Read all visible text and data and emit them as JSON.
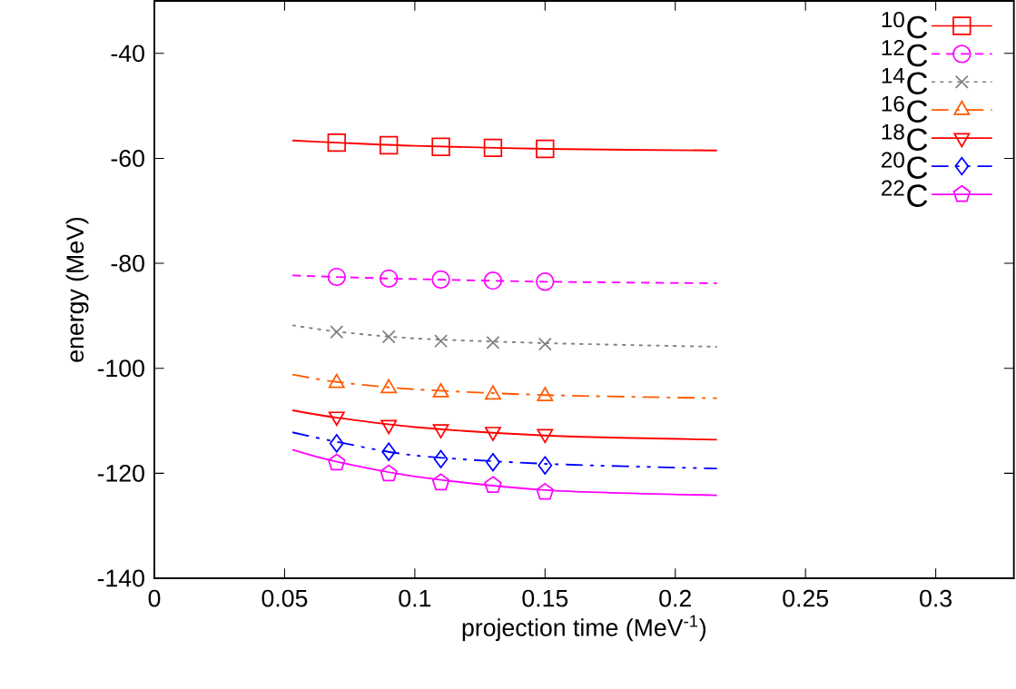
{
  "chart_data": {
    "type": "scatter",
    "xlabel": "projection time (MeV$^{-1}$)",
    "ylabel": "energy (MeV)",
    "xlim": [
      0,
      0.33
    ],
    "ylim": [
      -140,
      -30
    ],
    "xticks": [
      0,
      0.05,
      0.1,
      0.15,
      0.2,
      0.25,
      0.3
    ],
    "yticks": [
      -140,
      -120,
      -100,
      -80,
      -60,
      -40
    ],
    "legend": "top right",
    "grid": false,
    "series": [
      {
        "name": "$^{10}$C",
        "color": "#ff0000",
        "marker": "square",
        "line_style": "solid",
        "x": [
          0.07,
          0.09,
          0.11,
          0.13,
          0.15
        ],
        "values": [
          -57.0,
          -57.5,
          -57.8,
          -58.0,
          -58.2
        ]
      },
      {
        "name": "$^{12}$C",
        "color": "#ff00ff",
        "marker": "circle",
        "line_style": "dashed",
        "x": [
          0.07,
          0.09,
          0.11,
          0.13,
          0.15
        ],
        "values": [
          -82.6,
          -82.9,
          -83.1,
          -83.3,
          -83.5
        ]
      },
      {
        "name": "$^{14}$C",
        "color": "#808080",
        "marker": "cross",
        "line_style": "dotted",
        "x": [
          0.07,
          0.09,
          0.11,
          0.13,
          0.15
        ],
        "values": [
          -93.1,
          -94.0,
          -94.8,
          -95.1,
          -95.4
        ]
      },
      {
        "name": "$^{16}$C",
        "color": "#ff5a00",
        "marker": "triangle",
        "line_style": "dashdot",
        "x": [
          0.07,
          0.09,
          0.11,
          0.13,
          0.15
        ],
        "values": [
          -102.8,
          -103.8,
          -104.6,
          -105.0,
          -105.3
        ]
      },
      {
        "name": "$^{18}$C",
        "color": "#ff0000",
        "marker": "triangle-down",
        "line_style": "solid",
        "x": [
          0.07,
          0.09,
          0.11,
          0.13,
          0.15
        ],
        "values": [
          -109.2,
          -110.8,
          -111.6,
          -112.1,
          -112.5
        ]
      },
      {
        "name": "$^{20}$C",
        "color": "#0000ff",
        "marker": "diamond",
        "line_style": "dashdotdot",
        "x": [
          0.07,
          0.09,
          0.11,
          0.13,
          0.15
        ],
        "values": [
          -114.3,
          -115.9,
          -117.3,
          -117.9,
          -118.5
        ]
      },
      {
        "name": "$^{22}$C",
        "color": "#ff00ff",
        "line_style": "solid",
        "x": [
          0.07,
          0.09,
          0.11,
          0.13,
          0.15
        ],
        "values": [
          -118.0,
          -120.1,
          -121.8,
          -122.3,
          -123.6
        ]
      },
      {
        "type": "line",
        "color": "#ff0000",
        "line_style": "solid",
        "x": [
          0.053,
          0.07,
          0.1,
          0.15,
          0.216
        ],
        "values": [
          -56.6,
          -57.0,
          -57.6,
          -58.2,
          -58.5
        ]
      },
      {
        "type": "line",
        "color": "#ff00ff",
        "line_style": "dashed",
        "x": [
          0.053,
          0.07,
          0.1,
          0.15,
          0.216
        ],
        "values": [
          -82.3,
          -82.6,
          -83.0,
          -83.5,
          -83.8
        ]
      },
      {
        "type": "line",
        "color": "#808080",
        "line_style": "dotted",
        "x": [
          0.053,
          0.07,
          0.1,
          0.15,
          0.216
        ],
        "values": [
          -91.8,
          -93.0,
          -94.3,
          -95.2,
          -95.9
        ]
      },
      {
        "type": "line",
        "color": "#ff5a00",
        "line_style": "dashdot",
        "x": [
          0.053,
          0.07,
          0.1,
          0.15,
          0.216
        ],
        "values": [
          -101.2,
          -102.6,
          -104.0,
          -105.1,
          -105.7
        ]
      },
      {
        "type": "line",
        "color": "#ff0000",
        "line_style": "solid",
        "x": [
          0.053,
          0.07,
          0.1,
          0.15,
          0.216
        ],
        "values": [
          -108.0,
          -109.4,
          -111.2,
          -112.8,
          -113.6
        ]
      },
      {
        "type": "line",
        "color": "#0000ff",
        "line_style": "dashdotdot",
        "x": [
          0.053,
          0.07,
          0.1,
          0.15,
          0.216
        ],
        "values": [
          -112.2,
          -114.0,
          -116.6,
          -118.2,
          -119.1
        ]
      },
      {
        "type": "line",
        "color": "#ff00ff",
        "line_style": "solid",
        "x": [
          0.053,
          0.07,
          0.1,
          0.15,
          0.216
        ],
        "values": [
          -115.5,
          -117.8,
          -120.6,
          -123.2,
          -124.2
        ]
      }
    ]
  }
}
